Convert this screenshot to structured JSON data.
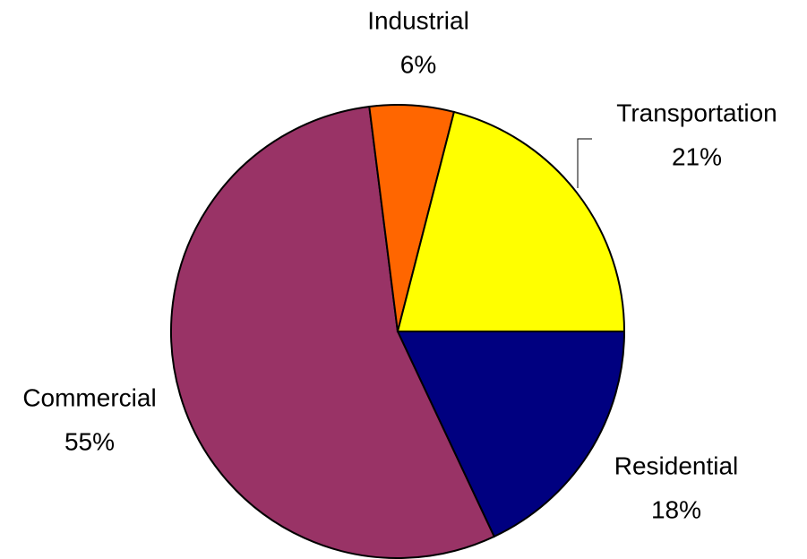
{
  "chart_data": {
    "type": "pie",
    "categories": [
      "Residential",
      "Commercial",
      "Industrial",
      "Transportation"
    ],
    "values": [
      18,
      55,
      6,
      21
    ],
    "value_labels": [
      "18%",
      "55%",
      "6%",
      "21%"
    ],
    "colors": [
      "#000080",
      "#993366",
      "#ff6600",
      "#ffff00"
    ]
  }
}
